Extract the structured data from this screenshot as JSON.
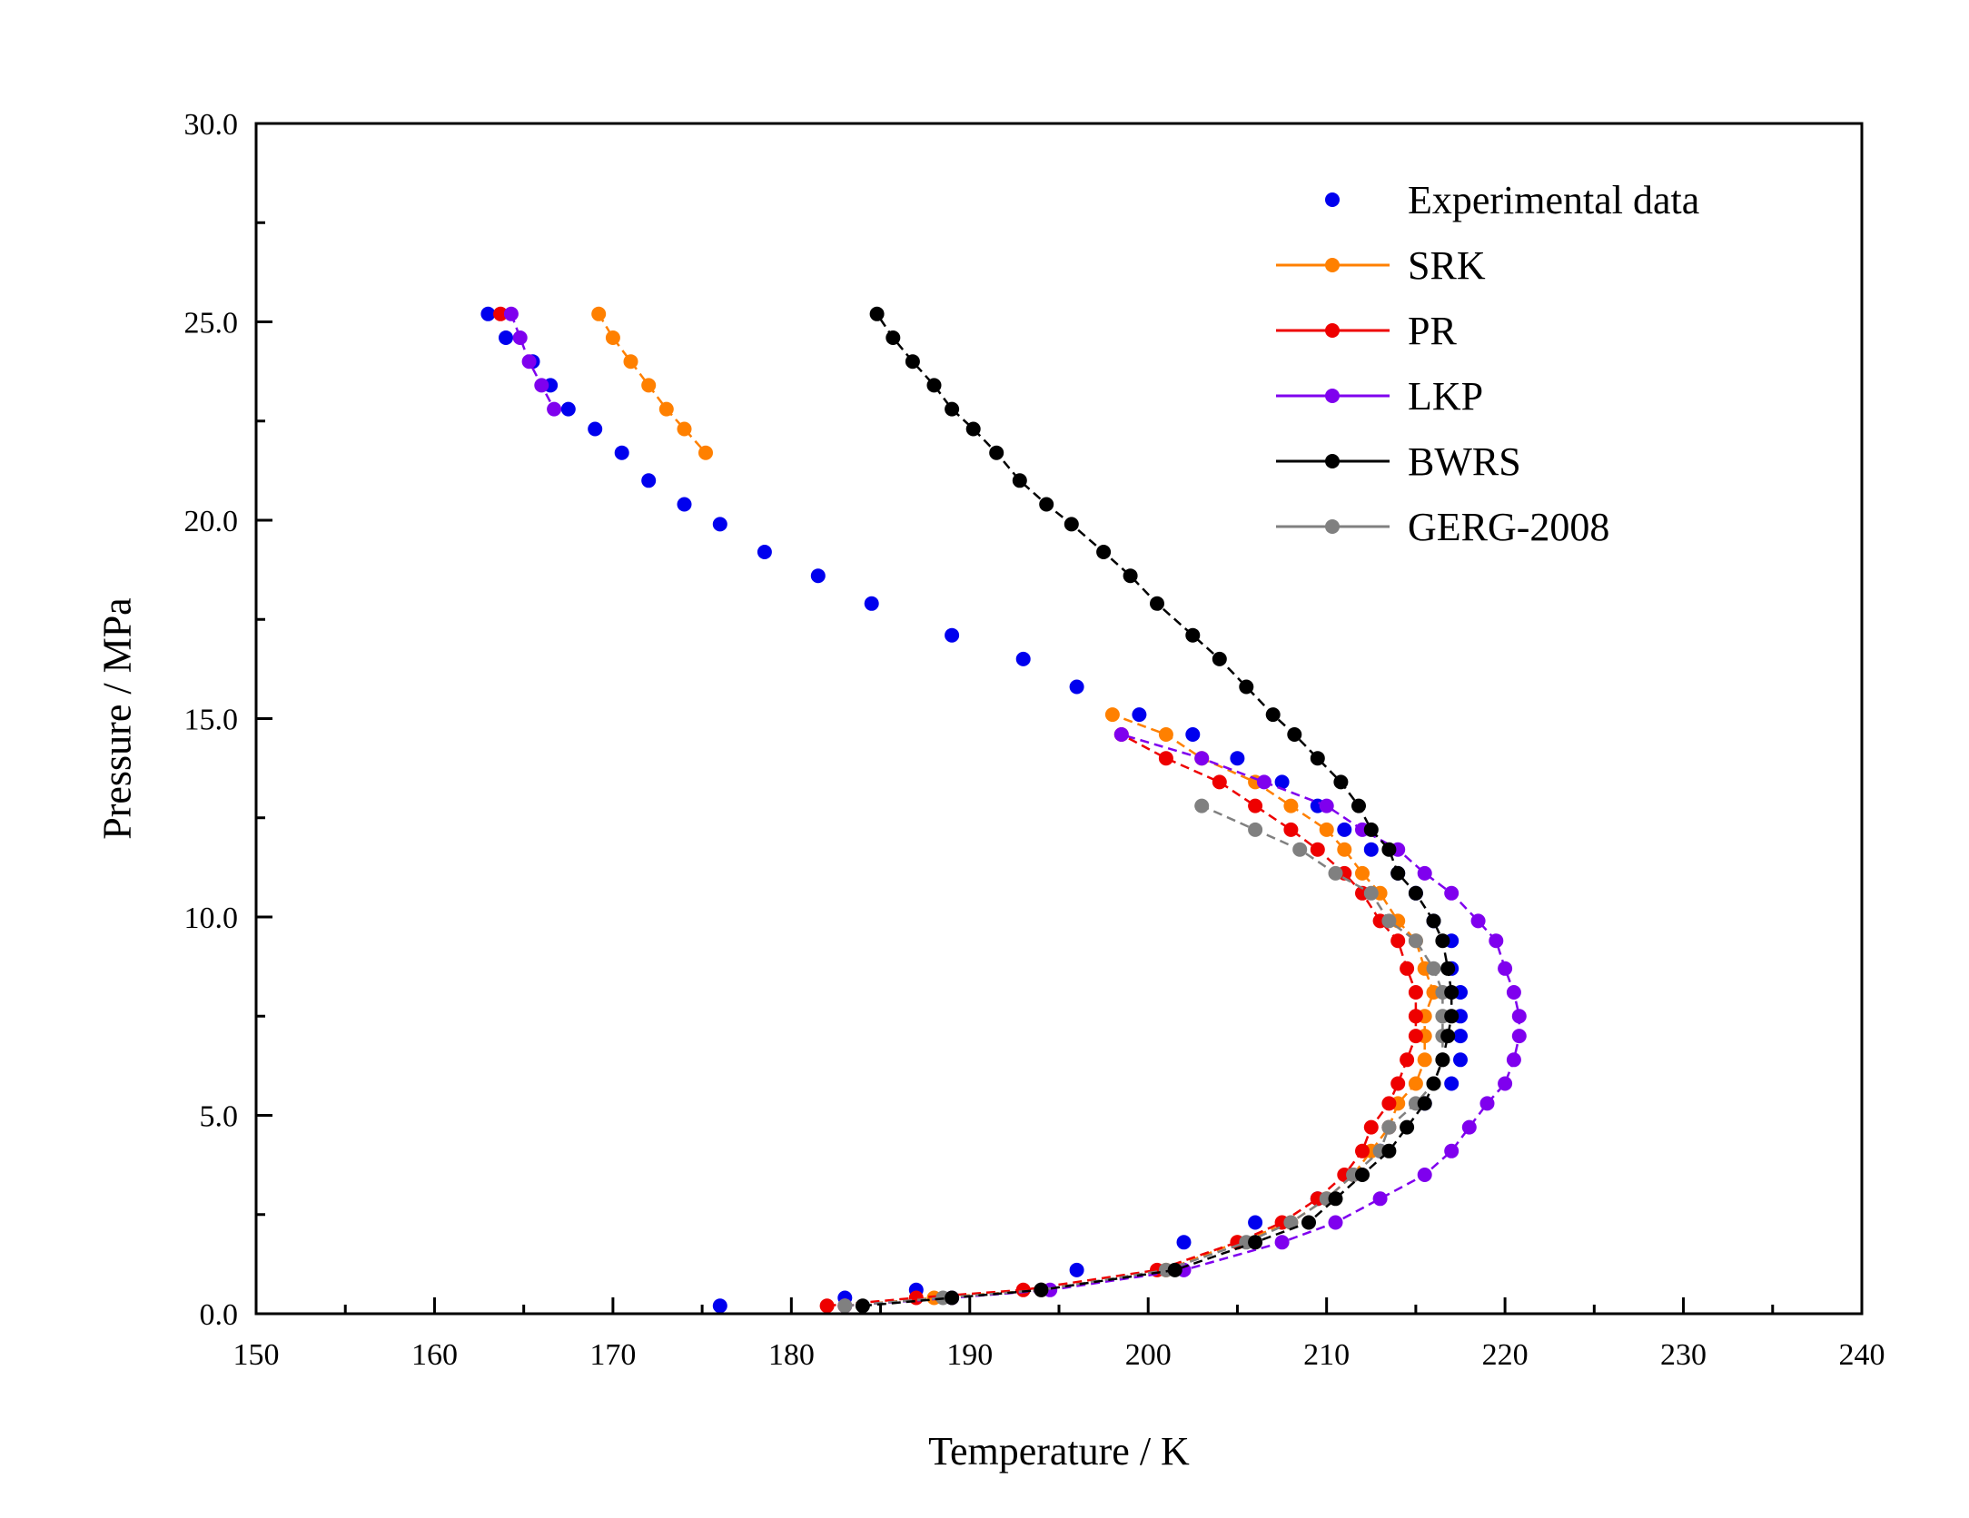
{
  "chart_data": {
    "type": "line",
    "title": "",
    "xlabel": "Temperature / K",
    "ylabel": "Pressure / MPa",
    "xlim": [
      150,
      240
    ],
    "ylim": [
      0,
      30
    ],
    "x_ticks": [
      "150",
      "160",
      "170",
      "180",
      "190",
      "200",
      "210",
      "220",
      "230",
      "240"
    ],
    "y_ticks": [
      "0.0",
      "5.0",
      "10.0",
      "15.0",
      "20.0",
      "25.0",
      "30.0"
    ],
    "grid": false,
    "legend_position": "top-right",
    "series": [
      {
        "name": "Experimental data",
        "style": "markers",
        "color": "#0000ee",
        "points": [
          [
            176.0,
            0.2
          ],
          [
            183.0,
            0.4
          ],
          [
            187.0,
            0.6
          ],
          [
            194.0,
            0.6
          ],
          [
            196.0,
            1.1
          ],
          [
            202.0,
            1.8
          ],
          [
            206.0,
            2.3
          ],
          [
            209.5,
            2.9
          ],
          [
            211.5,
            3.5
          ],
          [
            213.0,
            4.1
          ],
          [
            213.5,
            4.7
          ],
          [
            215.5,
            5.3
          ],
          [
            217.0,
            5.8
          ],
          [
            217.5,
            6.4
          ],
          [
            217.5,
            7.0
          ],
          [
            217.5,
            7.5
          ],
          [
            217.5,
            8.1
          ],
          [
            217.0,
            8.7
          ],
          [
            217.0,
            9.4
          ],
          [
            216.0,
            9.9
          ],
          [
            215.0,
            10.6
          ],
          [
            214.0,
            11.1
          ],
          [
            212.5,
            11.7
          ],
          [
            211.0,
            12.2
          ],
          [
            209.5,
            12.8
          ],
          [
            207.5,
            13.4
          ],
          [
            205.0,
            14.0
          ],
          [
            202.5,
            14.6
          ],
          [
            199.5,
            15.1
          ],
          [
            196.0,
            15.8
          ],
          [
            193.0,
            16.5
          ],
          [
            189.0,
            17.1
          ],
          [
            184.5,
            17.9
          ],
          [
            181.5,
            18.6
          ],
          [
            178.5,
            19.2
          ],
          [
            176.0,
            19.9
          ],
          [
            174.0,
            20.4
          ],
          [
            172.0,
            21.0
          ],
          [
            170.5,
            21.7
          ],
          [
            169.0,
            22.3
          ],
          [
            167.5,
            22.8
          ],
          [
            166.5,
            23.4
          ],
          [
            165.5,
            24.0
          ],
          [
            164.0,
            24.6
          ],
          [
            163.0,
            25.2
          ]
        ]
      },
      {
        "name": "SRK",
        "style": "line-markers",
        "color": "#ff8000",
        "segments": [
          [
            [
              183.0,
              0.2
            ],
            [
              188.0,
              0.4
            ],
            [
              194.0,
              0.6
            ],
            [
              201.0,
              1.1
            ],
            [
              205.0,
              1.8
            ],
            [
              208.0,
              2.3
            ],
            [
              210.0,
              2.9
            ],
            [
              211.5,
              3.5
            ],
            [
              212.5,
              4.1
            ],
            [
              213.5,
              4.7
            ],
            [
              214.0,
              5.3
            ],
            [
              215.0,
              5.8
            ],
            [
              215.5,
              6.4
            ],
            [
              215.5,
              7.0
            ],
            [
              215.5,
              7.5
            ],
            [
              216.0,
              8.1
            ],
            [
              215.5,
              8.7
            ],
            [
              215.0,
              9.4
            ],
            [
              214.0,
              9.9
            ],
            [
              213.0,
              10.6
            ],
            [
              212.0,
              11.1
            ],
            [
              211.0,
              11.7
            ],
            [
              210.0,
              12.2
            ],
            [
              208.0,
              12.8
            ],
            [
              206.0,
              13.4
            ],
            [
              203.0,
              14.0
            ],
            [
              201.0,
              14.6
            ],
            [
              198.0,
              15.1
            ]
          ],
          [
            [
              169.2,
              25.2
            ],
            [
              170.0,
              24.6
            ],
            [
              171.0,
              24.0
            ],
            [
              172.0,
              23.4
            ],
            [
              173.0,
              22.8
            ],
            [
              174.0,
              22.3
            ],
            [
              175.2,
              21.7
            ]
          ]
        ]
      },
      {
        "name": "PR",
        "style": "line-markers",
        "color": "#ee0000",
        "segments": [
          [
            [
              182.0,
              0.2
            ],
            [
              187.0,
              0.4
            ],
            [
              193.0,
              0.6
            ],
            [
              200.5,
              1.1
            ],
            [
              205.0,
              1.8
            ],
            [
              207.5,
              2.3
            ],
            [
              209.5,
              2.9
            ],
            [
              211.0,
              3.5
            ],
            [
              212.0,
              4.1
            ],
            [
              212.5,
              4.7
            ],
            [
              213.5,
              5.3
            ],
            [
              214.0,
              5.8
            ],
            [
              214.5,
              6.4
            ],
            [
              215.0,
              7.0
            ],
            [
              215.0,
              7.5
            ],
            [
              215.0,
              8.1
            ],
            [
              214.5,
              8.7
            ],
            [
              214.0,
              9.4
            ],
            [
              213.0,
              9.9
            ],
            [
              212.0,
              10.6
            ],
            [
              211.0,
              11.1
            ],
            [
              209.5,
              11.7
            ],
            [
              208.0,
              12.2
            ],
            [
              206.0,
              12.8
            ],
            [
              204.0,
              13.4
            ],
            [
              201.0,
              14.0
            ],
            [
              198.5,
              14.6
            ]
          ],
          [
            [
              163.7,
              25.2
            ]
          ]
        ]
      },
      {
        "name": "LKP",
        "style": "line-markers",
        "color": "#7f00ee",
        "segments": [
          [
            [
              183.0,
              0.2
            ],
            [
              189.0,
              0.4
            ],
            [
              194.5,
              0.6
            ],
            [
              202.0,
              1.1
            ],
            [
              207.5,
              1.8
            ],
            [
              210.5,
              2.3
            ],
            [
              213.0,
              2.9
            ],
            [
              215.5,
              3.5
            ],
            [
              217.0,
              4.1
            ],
            [
              218.0,
              4.7
            ],
            [
              219.0,
              5.3
            ],
            [
              220.0,
              5.8
            ],
            [
              220.5,
              6.4
            ],
            [
              220.8,
              7.0
            ],
            [
              220.8,
              7.5
            ],
            [
              220.5,
              8.1
            ],
            [
              220.0,
              8.7
            ],
            [
              219.5,
              9.4
            ],
            [
              218.5,
              9.9
            ],
            [
              217.0,
              10.6
            ],
            [
              215.5,
              11.1
            ],
            [
              214.0,
              11.7
            ],
            [
              212.0,
              12.2
            ],
            [
              210.0,
              12.8
            ],
            [
              206.5,
              13.4
            ],
            [
              203.0,
              14.0
            ],
            [
              198.5,
              14.6
            ]
          ],
          [
            [
              164.3,
              25.2
            ],
            [
              164.8,
              24.6
            ],
            [
              165.3,
              24.0
            ],
            [
              166.0,
              23.4
            ],
            [
              166.7,
              22.8
            ]
          ]
        ]
      },
      {
        "name": "BWRS",
        "style": "line-markers",
        "color": "#000000",
        "segments": [
          [
            [
              184.0,
              0.2
            ],
            [
              189.0,
              0.4
            ],
            [
              194.0,
              0.6
            ],
            [
              201.5,
              1.1
            ],
            [
              206.0,
              1.8
            ],
            [
              209.0,
              2.3
            ],
            [
              210.5,
              2.9
            ],
            [
              212.0,
              3.5
            ],
            [
              213.5,
              4.1
            ],
            [
              214.5,
              4.7
            ],
            [
              215.5,
              5.3
            ],
            [
              216.0,
              5.8
            ],
            [
              216.5,
              6.4
            ],
            [
              216.8,
              7.0
            ],
            [
              217.0,
              7.5
            ],
            [
              217.0,
              8.1
            ],
            [
              216.8,
              8.7
            ],
            [
              216.5,
              9.4
            ],
            [
              216.0,
              9.9
            ],
            [
              215.0,
              10.6
            ],
            [
              214.0,
              11.1
            ],
            [
              213.5,
              11.7
            ],
            [
              212.5,
              12.2
            ],
            [
              211.8,
              12.8
            ],
            [
              210.8,
              13.4
            ],
            [
              209.5,
              14.0
            ],
            [
              208.2,
              14.6
            ],
            [
              207.0,
              15.1
            ],
            [
              205.5,
              15.8
            ],
            [
              204.0,
              16.5
            ],
            [
              202.5,
              17.1
            ],
            [
              200.5,
              17.9
            ],
            [
              199.0,
              18.6
            ],
            [
              197.5,
              19.2
            ],
            [
              195.7,
              19.9
            ],
            [
              194.3,
              20.4
            ],
            [
              192.8,
              21.0
            ],
            [
              191.5,
              21.7
            ],
            [
              190.2,
              22.3
            ],
            [
              189.0,
              22.8
            ],
            [
              188.0,
              23.4
            ],
            [
              186.8,
              24.0
            ],
            [
              185.7,
              24.6
            ],
            [
              184.8,
              25.2
            ]
          ]
        ]
      },
      {
        "name": "GERG-2008",
        "style": "line-markers",
        "color": "#808080",
        "segments": [
          [
            [
              183.0,
              0.2
            ],
            [
              188.5,
              0.4
            ],
            [
              194.0,
              0.6
            ],
            [
              201.0,
              1.1
            ],
            [
              205.5,
              1.8
            ],
            [
              208.0,
              2.3
            ],
            [
              210.0,
              2.9
            ],
            [
              211.5,
              3.5
            ],
            [
              213.0,
              4.1
            ],
            [
              213.5,
              4.7
            ],
            [
              215.0,
              5.3
            ],
            [
              216.0,
              5.8
            ],
            [
              216.5,
              6.4
            ],
            [
              216.5,
              7.0
            ],
            [
              216.5,
              7.5
            ],
            [
              216.5,
              8.1
            ],
            [
              216.0,
              8.7
            ],
            [
              215.0,
              9.4
            ],
            [
              213.5,
              9.9
            ],
            [
              212.5,
              10.6
            ],
            [
              210.5,
              11.1
            ],
            [
              208.5,
              11.7
            ],
            [
              206.0,
              12.2
            ],
            [
              203.0,
              12.8
            ]
          ]
        ]
      }
    ]
  }
}
